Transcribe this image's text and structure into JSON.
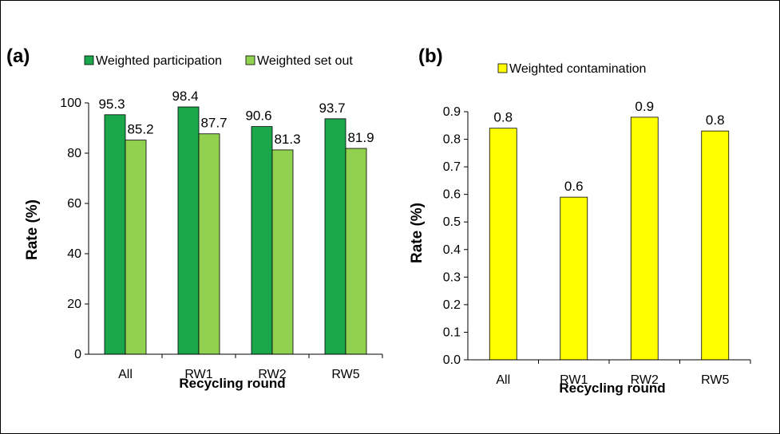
{
  "chart_data": [
    {
      "type": "bar",
      "panel_label": "(a)",
      "categories": [
        "All",
        "RW1",
        "RW2",
        "RW5"
      ],
      "series": [
        {
          "name": "Weighted participation",
          "values": [
            95.3,
            98.4,
            90.6,
            93.7
          ],
          "labels": [
            "95.3",
            "98.4",
            "90.6",
            "93.7"
          ],
          "color": "#1aa64b"
        },
        {
          "name": "Weighted set out",
          "values": [
            85.2,
            87.7,
            81.3,
            81.9
          ],
          "labels": [
            "85.2",
            "87.7",
            "81.3",
            "81.9"
          ],
          "color": "#92d050"
        }
      ],
      "xlabel": "Recycling round",
      "ylabel": "Rate (%)",
      "ylim": [
        0,
        100
      ],
      "yticks": [
        "0",
        "20",
        "40",
        "60",
        "80",
        "100"
      ],
      "grid": false,
      "legend_position": "top"
    },
    {
      "type": "bar",
      "panel_label": "(b)",
      "categories": [
        "All",
        "RW1",
        "RW2",
        "RW5"
      ],
      "series": [
        {
          "name": "Weighted contamination",
          "values": [
            0.84,
            0.59,
            0.88,
            0.83
          ],
          "labels": [
            "0.8",
            "0.6",
            "0.9",
            "0.8"
          ],
          "color": "#ffff00"
        }
      ],
      "xlabel": "Recycling round",
      "ylabel": "Rate (%)",
      "ylim": [
        0,
        0.9
      ],
      "yticks": [
        "0.0",
        "0.1",
        "0.2",
        "0.3",
        "0.4",
        "0.5",
        "0.6",
        "0.7",
        "0.8",
        "0.9"
      ],
      "grid": false,
      "legend_position": "top"
    }
  ]
}
